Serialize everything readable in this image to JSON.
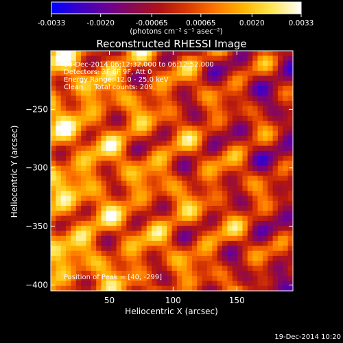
{
  "colorbar": {
    "ticks": [
      "-0.0033",
      "-0.0020",
      "-0.00065",
      "0.00065",
      "0.0020",
      "0.0033"
    ],
    "tick_values": [
      -0.0033,
      -0.002,
      -0.00065,
      0.00065,
      0.002,
      0.0033
    ],
    "range": [
      -0.0033,
      0.0033
    ],
    "unit_label": "(photons cm⁻² s⁻¹ asec⁻²)",
    "colormap": [
      "#0000ff",
      "#3a00c8",
      "#6a0096",
      "#8c0a50",
      "#b01414",
      "#dc3c00",
      "#ff7800",
      "#ffb400",
      "#ffe650",
      "#ffffff"
    ]
  },
  "chart_data": {
    "type": "heatmap",
    "title": "Reconstructed RHESSI Image",
    "xlabel": "Heliocentric X (arcsec)",
    "ylabel": "Heliocentric Y (arcsec)",
    "xlim": [
      4,
      194
    ],
    "ylim": [
      -405,
      -200
    ],
    "x_ticks": [
      50,
      100,
      150
    ],
    "y_ticks": [
      -250,
      -300,
      -350,
      -400
    ],
    "grid": false,
    "peak": {
      "x": 40,
      "y": -299
    },
    "info_lines": [
      "18-Dec-2014 06:12:32.000 to 06:12:52.000",
      "Detectors: 3F 6F 9F, Att 0",
      "Energy Range: 12.0 - 25.0 keV",
      "Clean     Total counts: 209."
    ],
    "peak_text": "Position of Peak = [40, -299]"
  },
  "footer": {
    "timestamp": "19-Dec-2014 10:20"
  }
}
